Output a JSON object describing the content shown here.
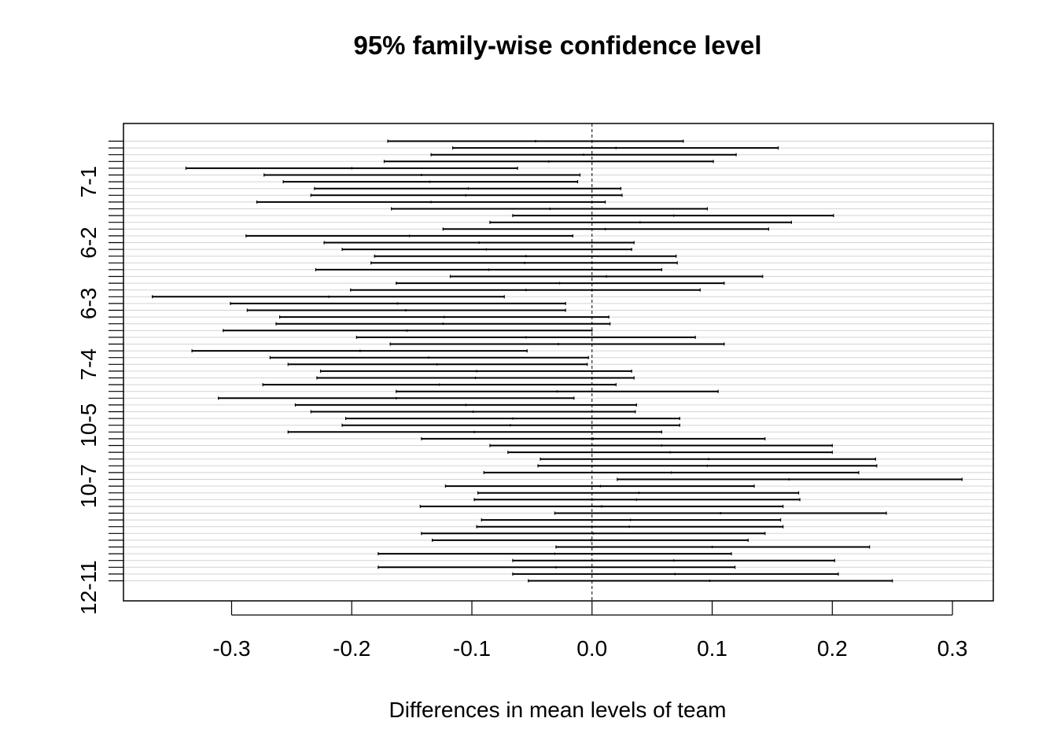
{
  "chart_data": {
    "type": "interval",
    "title": "95% family-wise confidence level",
    "xlabel": "Differences in mean levels of team",
    "ylabel": "",
    "xlim": [
      -0.39,
      0.334
    ],
    "x_ticks": [
      "-0.3",
      "-0.2",
      "-0.1",
      "0.0",
      "0.1",
      "0.2",
      "0.3"
    ],
    "x_tick_values": [
      -0.3,
      -0.2,
      -0.1,
      0.0,
      0.1,
      0.2,
      0.3
    ],
    "reference_line": 0,
    "grid": true,
    "y_labels": [
      {
        "label": "7-1",
        "index": 6
      },
      {
        "label": "6-2",
        "index": 15
      },
      {
        "label": "6-3",
        "index": 24
      },
      {
        "label": "7-4",
        "index": 33
      },
      {
        "label": "10-5",
        "index": 42
      },
      {
        "label": "10-7",
        "index": 51
      },
      {
        "label": "12-11",
        "index": 66
      }
    ],
    "comparisons": [
      {
        "lwr": -0.17,
        "est": -0.047,
        "upr": 0.076
      },
      {
        "lwr": -0.116,
        "est": 0.02,
        "upr": 0.155
      },
      {
        "lwr": -0.134,
        "est": -0.007,
        "upr": 0.12
      },
      {
        "lwr": -0.173,
        "est": -0.036,
        "upr": 0.101
      },
      {
        "lwr": -0.338,
        "est": -0.2,
        "upr": -0.062
      },
      {
        "lwr": -0.273,
        "est": -0.142,
        "upr": -0.01
      },
      {
        "lwr": -0.257,
        "est": -0.135,
        "upr": -0.012
      },
      {
        "lwr": -0.231,
        "est": -0.103,
        "upr": 0.024
      },
      {
        "lwr": -0.234,
        "est": -0.105,
        "upr": 0.025
      },
      {
        "lwr": -0.279,
        "est": -0.134,
        "upr": 0.011
      },
      {
        "lwr": -0.167,
        "est": -0.035,
        "upr": 0.096
      },
      {
        "lwr": -0.066,
        "est": 0.068,
        "upr": 0.201
      },
      {
        "lwr": -0.085,
        "est": 0.04,
        "upr": 0.166
      },
      {
        "lwr": -0.124,
        "est": 0.011,
        "upr": 0.147
      },
      {
        "lwr": -0.288,
        "est": -0.152,
        "upr": -0.016
      },
      {
        "lwr": -0.223,
        "est": -0.094,
        "upr": 0.035
      },
      {
        "lwr": -0.208,
        "est": -0.088,
        "upr": 0.033
      },
      {
        "lwr": -0.181,
        "est": -0.055,
        "upr": 0.07
      },
      {
        "lwr": -0.184,
        "est": -0.056,
        "upr": 0.071
      },
      {
        "lwr": -0.23,
        "est": -0.086,
        "upr": 0.058
      },
      {
        "lwr": -0.118,
        "est": 0.012,
        "upr": 0.142
      },
      {
        "lwr": -0.163,
        "est": -0.027,
        "upr": 0.11
      },
      {
        "lwr": -0.201,
        "est": -0.055,
        "upr": 0.09
      },
      {
        "lwr": -0.366,
        "est": -0.219,
        "upr": -0.073
      },
      {
        "lwr": -0.301,
        "est": -0.162,
        "upr": -0.022
      },
      {
        "lwr": -0.287,
        "est": -0.155,
        "upr": -0.022
      },
      {
        "lwr": -0.26,
        "est": -0.123,
        "upr": 0.014
      },
      {
        "lwr": -0.263,
        "est": -0.124,
        "upr": 0.015
      },
      {
        "lwr": -0.307,
        "est": -0.154,
        "upr": 0.0
      },
      {
        "lwr": -0.196,
        "est": -0.055,
        "upr": 0.086
      },
      {
        "lwr": -0.168,
        "est": -0.028,
        "upr": 0.11
      },
      {
        "lwr": -0.333,
        "est": -0.193,
        "upr": -0.054
      },
      {
        "lwr": -0.268,
        "est": -0.136,
        "upr": -0.003
      },
      {
        "lwr": -0.253,
        "est": -0.129,
        "upr": -0.004
      },
      {
        "lwr": -0.226,
        "est": -0.096,
        "upr": 0.033
      },
      {
        "lwr": -0.229,
        "est": -0.097,
        "upr": 0.035
      },
      {
        "lwr": -0.274,
        "est": -0.127,
        "upr": 0.02
      },
      {
        "lwr": -0.163,
        "est": -0.029,
        "upr": 0.105
      },
      {
        "lwr": -0.311,
        "est": -0.163,
        "upr": -0.015
      },
      {
        "lwr": -0.247,
        "est": -0.105,
        "upr": 0.037
      },
      {
        "lwr": -0.234,
        "est": -0.099,
        "upr": 0.036
      },
      {
        "lwr": -0.205,
        "est": -0.066,
        "upr": 0.073
      },
      {
        "lwr": -0.208,
        "est": -0.068,
        "upr": 0.073
      },
      {
        "lwr": -0.253,
        "est": -0.098,
        "upr": 0.058
      },
      {
        "lwr": -0.142,
        "est": 0.001,
        "upr": 0.144
      },
      {
        "lwr": -0.085,
        "est": 0.058,
        "upr": 0.2
      },
      {
        "lwr": -0.07,
        "est": 0.065,
        "upr": 0.2
      },
      {
        "lwr": -0.043,
        "est": 0.097,
        "upr": 0.236
      },
      {
        "lwr": -0.045,
        "est": 0.096,
        "upr": 0.237
      },
      {
        "lwr": -0.09,
        "est": 0.066,
        "upr": 0.222
      },
      {
        "lwr": 0.021,
        "est": 0.164,
        "upr": 0.308
      },
      {
        "lwr": -0.122,
        "est": 0.007,
        "upr": 0.135
      },
      {
        "lwr": -0.095,
        "est": 0.039,
        "upr": 0.172
      },
      {
        "lwr": -0.098,
        "est": 0.037,
        "upr": 0.173
      },
      {
        "lwr": -0.143,
        "est": 0.008,
        "upr": 0.159
      },
      {
        "lwr": -0.031,
        "est": 0.107,
        "upr": 0.245
      },
      {
        "lwr": -0.092,
        "est": 0.032,
        "upr": 0.157
      },
      {
        "lwr": -0.096,
        "est": 0.031,
        "upr": 0.159
      },
      {
        "lwr": -0.142,
        "est": 0.001,
        "upr": 0.144
      },
      {
        "lwr": -0.133,
        "est": -0.001,
        "upr": 0.13
      },
      {
        "lwr": -0.03,
        "est": 0.1,
        "upr": 0.231
      },
      {
        "lwr": -0.178,
        "est": -0.031,
        "upr": 0.116
      },
      {
        "lwr": -0.066,
        "est": 0.068,
        "upr": 0.202
      },
      {
        "lwr": -0.178,
        "est": -0.03,
        "upr": 0.119
      },
      {
        "lwr": -0.066,
        "est": 0.069,
        "upr": 0.205
      },
      {
        "lwr": -0.053,
        "est": 0.098,
        "upr": 0.25
      }
    ]
  }
}
